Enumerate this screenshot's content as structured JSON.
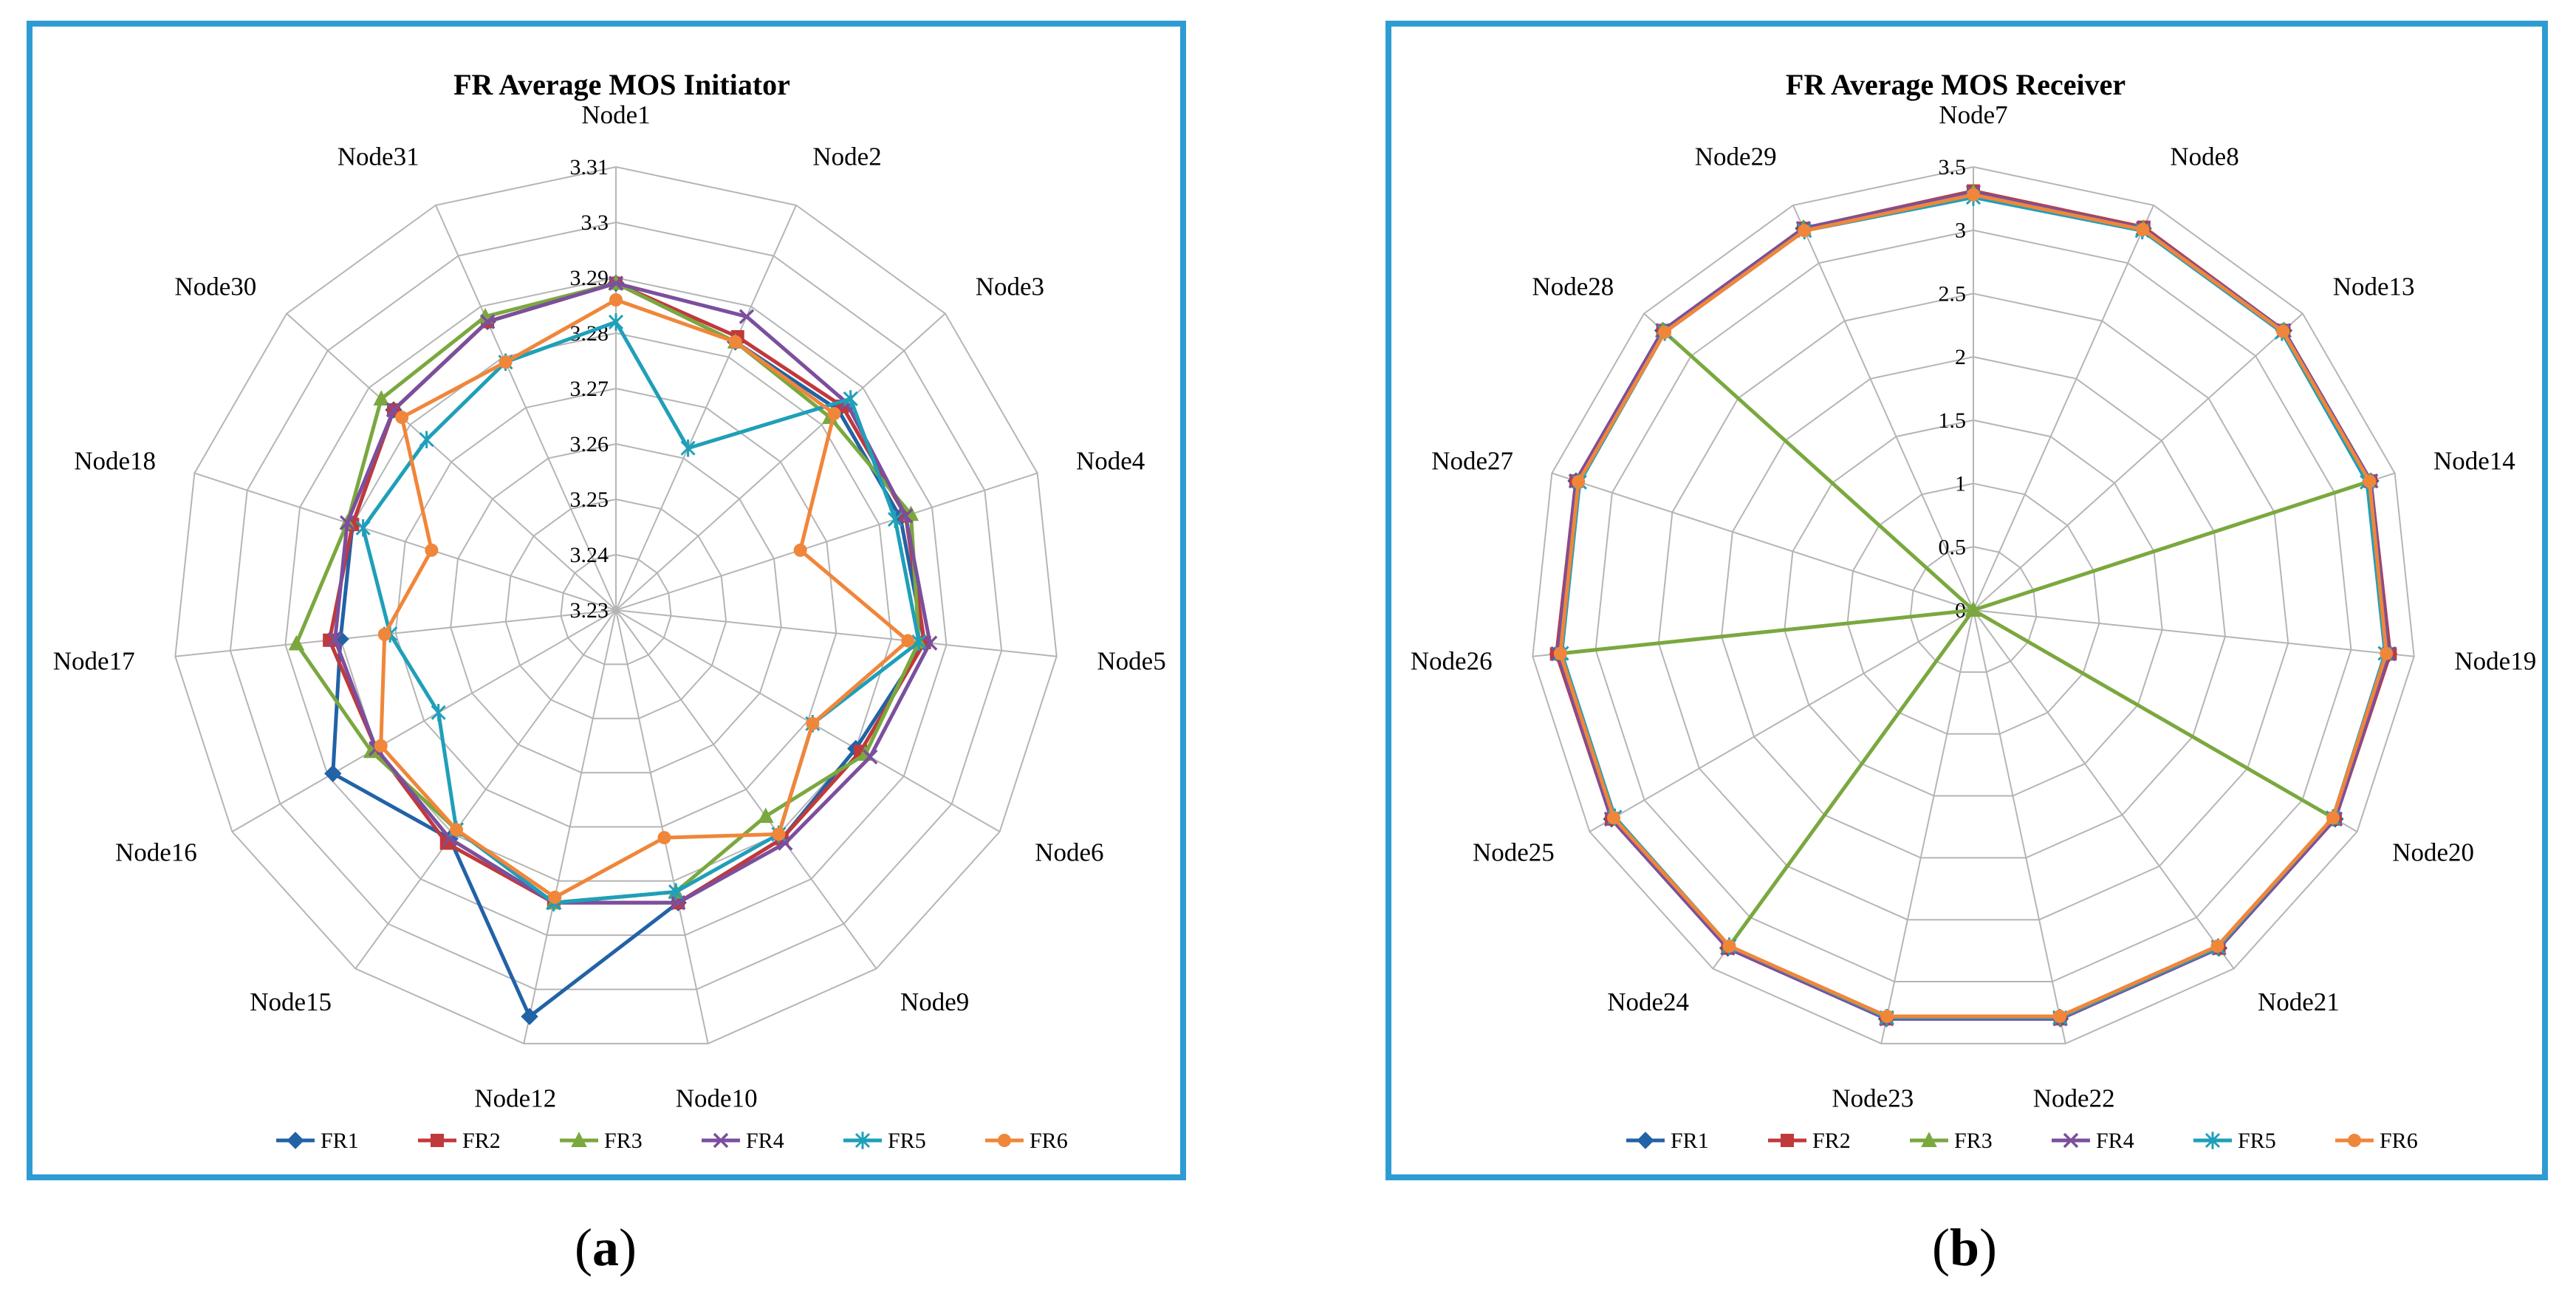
{
  "captions": [
    {
      "open": "(",
      "letter": "a",
      "close": ")"
    },
    {
      "open": "(",
      "letter": "b",
      "close": ")"
    }
  ],
  "series_colors": {
    "FR1": "#2262a6",
    "FR2": "#c0393b",
    "FR3": "#7aa83f",
    "FR4": "#7b4f9d",
    "FR5": "#1f9fb9",
    "FR6": "#f0863a"
  },
  "series_markers": {
    "FR1": "diamond",
    "FR2": "square",
    "FR3": "triangle",
    "FR4": "x",
    "FR5": "star",
    "FR6": "circle"
  },
  "chart_data": [
    {
      "type": "radar",
      "title": "FR Average MOS Initiator",
      "categories": [
        "Node1",
        "Node2",
        "Node3",
        "Node4",
        "Node5",
        "Node6",
        "Node9",
        "Node10",
        "Node12",
        "Node15",
        "Node16",
        "Node17",
        "Node18",
        "Node30",
        "Node31"
      ],
      "axis_min": 3.23,
      "axis_max": 3.31,
      "ticks": [
        "3.23",
        "3.24",
        "3.25",
        "3.26",
        "3.27",
        "3.28",
        "3.29",
        "3.3",
        "3.31"
      ],
      "tick_values": [
        3.23,
        3.24,
        3.25,
        3.26,
        3.27,
        3.28,
        3.29,
        3.3,
        3.31
      ],
      "legend_position": "bottom",
      "series": [
        {
          "name": "FR1",
          "values": [
            3.289,
            3.283,
            3.284,
            3.284,
            3.286,
            3.28,
            3.281,
            3.284,
            3.305,
            3.281,
            3.289,
            3.28,
            3.28,
            3.284,
            3.287
          ]
        },
        {
          "name": "FR2",
          "values": [
            3.289,
            3.284,
            3.285,
            3.285,
            3.286,
            3.281,
            3.281,
            3.284,
            3.284,
            3.282,
            3.28,
            3.282,
            3.28,
            3.284,
            3.287
          ]
        },
        {
          "name": "FR3",
          "values": [
            3.289,
            3.283,
            3.282,
            3.286,
            3.285,
            3.282,
            3.276,
            3.282,
            3.284,
            3.279,
            3.281,
            3.288,
            3.281,
            3.287,
            3.288
          ]
        },
        {
          "name": "FR4",
          "values": [
            3.289,
            3.288,
            3.286,
            3.285,
            3.287,
            3.283,
            3.282,
            3.284,
            3.284,
            3.281,
            3.28,
            3.281,
            3.281,
            3.284,
            3.287
          ]
        },
        {
          "name": "FR5",
          "values": [
            3.282,
            3.262,
            3.287,
            3.283,
            3.285,
            3.271,
            3.28,
            3.282,
            3.284,
            3.279,
            3.267,
            3.271,
            3.278,
            3.276,
            3.279
          ]
        },
        {
          "name": "FR6",
          "values": [
            3.286,
            3.283,
            3.283,
            3.265,
            3.283,
            3.271,
            3.28,
            3.272,
            3.283,
            3.279,
            3.279,
            3.272,
            3.265,
            3.282,
            3.279
          ]
        }
      ]
    },
    {
      "type": "radar",
      "title": "FR Average MOS Receiver",
      "categories": [
        "Node7",
        "Node8",
        "Node13",
        "Node14",
        "Node19",
        "Node20",
        "Node21",
        "Node22",
        "Node23",
        "Node24",
        "Node25",
        "Node26",
        "Node27",
        "Node28",
        "Node29"
      ],
      "axis_min": 0,
      "axis_max": 3.5,
      "ticks": [
        "0",
        "0.5",
        "1",
        "1.5",
        "2",
        "2.5",
        "3",
        "3.5"
      ],
      "tick_values": [
        0,
        0.5,
        1,
        1.5,
        2,
        2.5,
        3,
        3.5
      ],
      "legend_position": "bottom",
      "series": [
        {
          "name": "FR1",
          "values": [
            3.3,
            3.3,
            3.3,
            3.3,
            3.3,
            3.3,
            3.3,
            3.3,
            3.3,
            3.3,
            3.3,
            3.3,
            3.3,
            3.3,
            3.3
          ]
        },
        {
          "name": "FR2",
          "values": [
            3.31,
            3.31,
            3.3,
            3.3,
            3.31,
            3.3,
            3.3,
            3.3,
            3.3,
            3.3,
            3.3,
            3.31,
            3.3,
            3.3,
            3.3
          ]
        },
        {
          "name": "FR3",
          "values": [
            3.3,
            3.3,
            3.3,
            3.3,
            0,
            3.28,
            0,
            0,
            0,
            3.28,
            0,
            3.28,
            0,
            3.3,
            3.3
          ]
        },
        {
          "name": "FR4",
          "values": [
            3.3,
            3.3,
            3.3,
            3.3,
            3.3,
            3.3,
            3.3,
            3.3,
            3.3,
            3.3,
            3.3,
            3.3,
            3.3,
            3.3,
            3.3
          ]
        },
        {
          "name": "FR5",
          "values": [
            3.26,
            3.28,
            3.28,
            3.27,
            3.27,
            3.28,
            3.29,
            3.29,
            3.29,
            3.28,
            3.27,
            3.27,
            3.27,
            3.28,
            3.28
          ]
        },
        {
          "name": "FR6",
          "values": [
            3.28,
            3.29,
            3.29,
            3.29,
            3.28,
            3.28,
            3.28,
            3.28,
            3.28,
            3.28,
            3.28,
            3.28,
            3.28,
            3.28,
            3.28
          ]
        }
      ]
    }
  ]
}
